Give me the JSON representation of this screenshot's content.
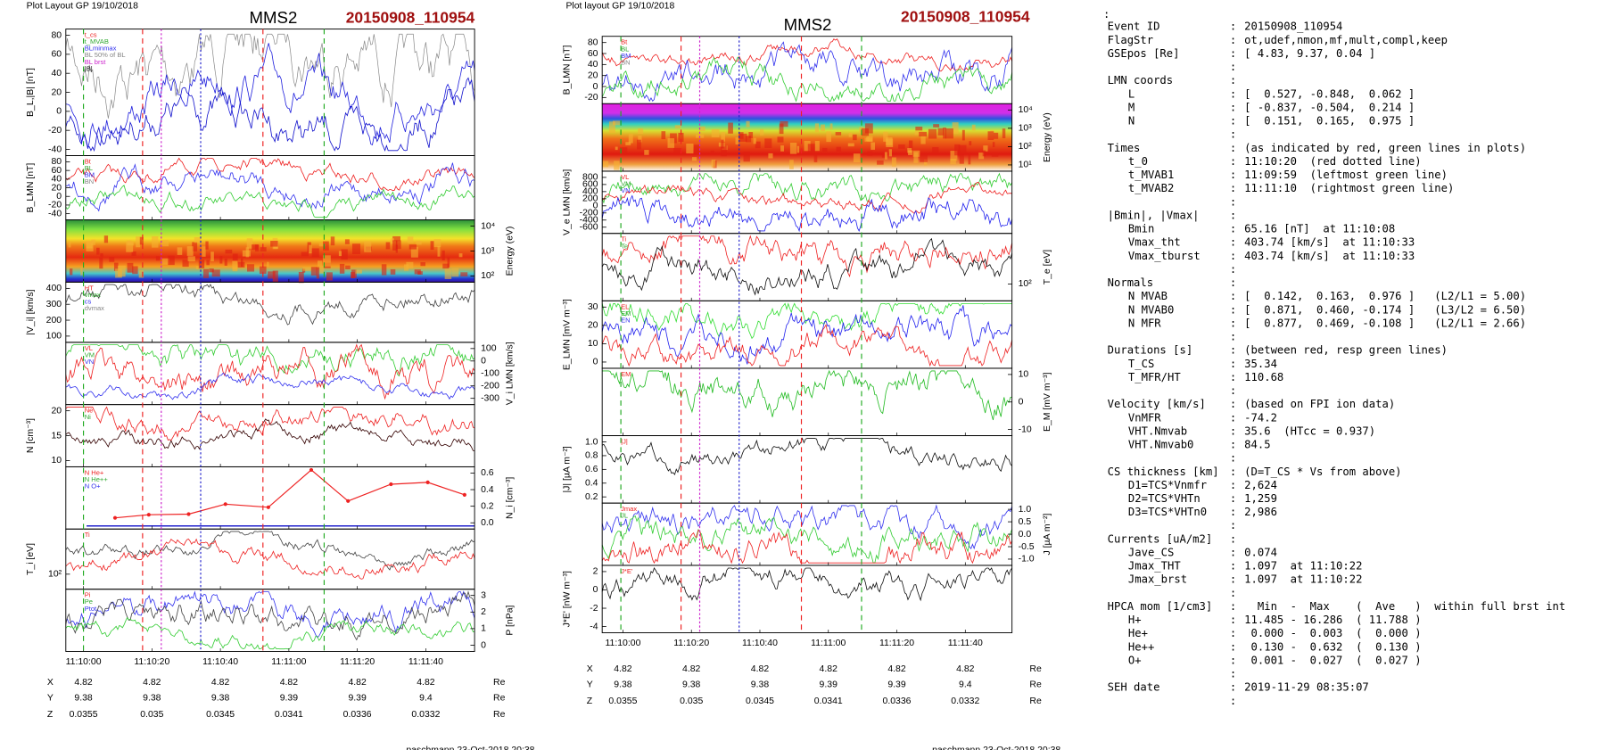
{
  "plots": [
    {
      "header": "Plot Layout GP 19/10/2018",
      "title": "MMS2",
      "event": "20150908_110954",
      "footer": "paschmann 23-Oct-2018 20:38",
      "xticks": [
        "11:10:00",
        "11:10:20",
        "11:10:40",
        "11:11:00",
        "11:11:20",
        "11:11:40"
      ],
      "positions": [
        [
          "X",
          "4.82",
          "4.82",
          "4.82",
          "4.82",
          "4.82",
          "4.82",
          "Re"
        ],
        [
          "Y",
          "9.38",
          "9.38",
          "9.38",
          "9.39",
          "9.39",
          "9.4",
          "Re"
        ],
        [
          "Z",
          "0.0355",
          "0.035",
          "0.0345",
          "0.0341",
          "0.0336",
          "0.0332",
          "Re"
        ]
      ],
      "panels": [
        {
          "ylabel": "B_L,|B| [nT]",
          "side": "left",
          "ticks": [
            "80",
            "60",
            "40",
            "20",
            "0",
            "-20",
            "-40"
          ],
          "legend": [
            "t_cs",
            "t_MVAB",
            "BLminmax",
            "BL 50% of BL",
            "BL brst",
            "|B|"
          ],
          "traces": [
            "#888",
            "#22d",
            "#11c"
          ]
        },
        {
          "ylabel": "B_LMN [nT]",
          "side": "left",
          "ticks": [
            "80",
            "60",
            "40",
            "20",
            "0",
            "-20",
            "-40"
          ],
          "legend": [
            "Bt",
            "BL",
            "BM",
            "BN"
          ],
          "traces": [
            "#e22",
            "#33e",
            "#3c3"
          ]
        },
        {
          "ylabel": "Energy (eV)",
          "side": "right",
          "ticks": [
            "10⁴",
            "10³",
            "10²"
          ],
          "legend": [],
          "spectrogram": true
        },
        {
          "ylabel": "|V_i| [km/s]",
          "side": "left",
          "ticks": [
            "400",
            "300",
            "200",
            "100"
          ],
          "legend": [
            "HT",
            "vmax",
            "cs",
            "dvmax"
          ],
          "traces": [
            "#444"
          ]
        },
        {
          "ylabel": "V_i LMN [km/s]",
          "side": "right",
          "ticks": [
            "100",
            "0",
            "-100",
            "-200",
            "-300"
          ],
          "legend": [
            "VL",
            "VM",
            "VN"
          ],
          "traces": [
            "#3c3",
            "#e22",
            "#33e"
          ]
        },
        {
          "ylabel": "N [cm⁻³]",
          "side": "left",
          "ticks": [
            "20",
            "15",
            "10"
          ],
          "legend": [
            "Ne",
            "Ni"
          ],
          "traces": [
            "#e22",
            "#300"
          ]
        },
        {
          "ylabel": "N_i [cm⁻³]",
          "side": "right",
          "ticks": [
            "0.6",
            "0.4",
            "0.2",
            "0.0"
          ],
          "legend": [
            "N He+",
            "N He++",
            "N O+"
          ],
          "traces": []
        },
        {
          "ylabel": "T_i [eV]",
          "side": "left",
          "ticks": [
            "10²"
          ],
          "legend": [
            "Ti"
          ],
          "traces": [
            "#444",
            "#e22"
          ]
        },
        {
          "ylabel": "P [nPa]",
          "side": "right",
          "ticks": [
            "3",
            "2",
            "1",
            "0"
          ],
          "legend": [
            "Pi",
            "Pe",
            "Ptot"
          ],
          "traces": [
            "#33e",
            "#444",
            "#3c3"
          ]
        }
      ]
    },
    {
      "header": "Plot layout GP 19/10/2018",
      "title": "MMS2",
      "event": "20150908_110954",
      "footer": "paschmann 23-Oct-2018 20:38",
      "xticks": [
        "11:10:00",
        "11:10:20",
        "11:10:40",
        "11:11:00",
        "11:11:20",
        "11:11:40"
      ],
      "positions": [
        [
          "X",
          "4.82",
          "4.82",
          "4.82",
          "4.82",
          "4.82",
          "4.82",
          "Re"
        ],
        [
          "Y",
          "9.38",
          "9.38",
          "9.38",
          "9.39",
          "9.39",
          "9.4",
          "Re"
        ],
        [
          "Z",
          "0.0355",
          "0.035",
          "0.0345",
          "0.0341",
          "0.0336",
          "0.0332",
          "Re"
        ]
      ],
      "panels": [
        {
          "ylabel": "B_LMN [nT]",
          "side": "left",
          "ticks": [
            "80",
            "60",
            "40",
            "20",
            "0",
            "-20"
          ],
          "legend": [
            "Bt",
            "BL",
            "BM",
            "BN"
          ],
          "traces": [
            "#e22",
            "#33e",
            "#3c3"
          ]
        },
        {
          "ylabel": "Energy (eV)",
          "side": "right",
          "ticks": [
            "10⁴",
            "10³",
            "10²",
            "10¹"
          ],
          "legend": [],
          "spectrogram": true,
          "magenta": true
        },
        {
          "ylabel": "V_e LMN [km/s]",
          "side": "left",
          "ticks": [
            "800",
            "600",
            "400",
            "200",
            "0",
            "-200",
            "-400",
            "-600"
          ],
          "legend": [
            "VL",
            "VM",
            "VN"
          ],
          "traces": [
            "#3c3",
            "#e22",
            "#22e"
          ]
        },
        {
          "ylabel": "T_e [eV]",
          "side": "right",
          "ticks": [
            "10²"
          ],
          "legend": [
            "Ti",
            "Te"
          ],
          "traces": [
            "#e22",
            "#111"
          ]
        },
        {
          "ylabel": "E_LMN [mV m⁻³]",
          "side": "left",
          "ticks": [
            "30",
            "20",
            "10",
            "0"
          ],
          "legend": [
            "EL",
            "EM",
            "EN"
          ],
          "traces": [
            "#3d3",
            "#22e",
            "#e22"
          ]
        },
        {
          "ylabel": "E_M [mV m⁻³]",
          "side": "right",
          "ticks": [
            "10",
            "0",
            "-10"
          ],
          "legend": [
            "EM"
          ],
          "traces": [
            "#2b2"
          ]
        },
        {
          "ylabel": "|J| [µA m⁻²]",
          "side": "left",
          "ticks": [
            "1.0",
            "0.8",
            "0.6",
            "0.4",
            "0.2"
          ],
          "legend": [
            "|J|"
          ],
          "traces": [
            "#111"
          ]
        },
        {
          "ylabel": "J [µA m⁻²]",
          "side": "right",
          "ticks": [
            "1.0",
            "0.5",
            "0.0",
            "-0.5",
            "-1.0"
          ],
          "legend": [
            "Jmax",
            "JL"
          ],
          "traces": [
            "#33e",
            "#3c3",
            "#e22"
          ]
        },
        {
          "ylabel": "J*E' [nW m⁻³]",
          "side": "left",
          "ticks": [
            "2",
            "0",
            "-2",
            "-4"
          ],
          "legend": [
            "J*E'"
          ],
          "traces": [
            "#111"
          ]
        }
      ]
    }
  ],
  "summary": [
    {
      "heading": null,
      "value": null,
      "items": [
        [
          "Event ID",
          "20150908_110954"
        ],
        [
          "FlagStr",
          "ot,udef,nmon,mf,mult,compl,keep"
        ],
        [
          "GSEpos [Re]",
          "[ 4.83, 9.37, 0.04 ]"
        ]
      ]
    },
    {
      "heading": "LMN coords",
      "value": null,
      "items": [
        [
          "L",
          "[  0.527, -0.848,  0.062 ]"
        ],
        [
          "M",
          "[ -0.837, -0.504,  0.214 ]"
        ],
        [
          "N",
          "[  0.151,  0.165,  0.975 ]"
        ]
      ]
    },
    {
      "heading": "Times",
      "value": "(as indicated by red, green lines in plots)",
      "items": [
        [
          "t_0",
          "11:10:20  (red dotted line)"
        ],
        [
          "t_MVAB1",
          "11:09:59  (leftmost green line)"
        ],
        [
          "t_MVAB2",
          "11:11:10  (rightmost green line)"
        ]
      ]
    },
    {
      "heading": "|Bmin|, |Vmax|",
      "value": null,
      "items": [
        [
          "Bmin",
          "65.16 [nT]  at 11:10:08"
        ],
        [
          "Vmax_tht",
          "403.74 [km/s]  at 11:10:33"
        ],
        [
          "Vmax_tburst",
          "403.74 [km/s]  at 11:10:33"
        ]
      ]
    },
    {
      "heading": "Normals",
      "value": null,
      "items": [
        [
          "N MVAB",
          "[  0.142,  0.163,  0.976 ]   (L2/L1 = 5.00)"
        ],
        [
          "N MVAB0",
          "[  0.871,  0.460, -0.174 ]   (L3/L2 = 6.50)"
        ],
        [
          "N MFR",
          "[  0.877,  0.469, -0.108 ]   (L2/L1 = 2.66)"
        ]
      ]
    },
    {
      "heading": "Durations [s]",
      "value": "(between red, resp green lines)",
      "items": [
        [
          "T_CS",
          "35.34"
        ],
        [
          "T_MFR/HT",
          "110.68"
        ]
      ]
    },
    {
      "heading": "Velocity [km/s]",
      "value": "(based on FPI ion data)",
      "items": [
        [
          "VnMFR",
          "-74.2"
        ],
        [
          "VHT.Nmvab",
          "35.6  (HTcc = 0.937)"
        ],
        [
          "VHT.Nmvab0",
          "84.5"
        ]
      ]
    },
    {
      "heading": "CS thickness [km]",
      "value": "(D=T_CS * Vs from above)",
      "items": [
        [
          "D1=TCS*Vnmfr",
          "2,624"
        ],
        [
          "D2=TCS*VHTn",
          "1,259"
        ],
        [
          "D3=TCS*VHTn0",
          "2,986"
        ]
      ]
    },
    {
      "heading": "Currents [uA/m2]",
      "value": null,
      "items": [
        [
          "Jave_CS",
          "0.074"
        ],
        [
          "Jmax_THT",
          "1.097  at 11:10:22"
        ],
        [
          "Jmax_brst",
          "1.097  at 11:10:22"
        ]
      ]
    },
    {
      "heading": "HPCA mom [1/cm3]",
      "value": "  Min  -  Max    (  Ave   )  within full brst int",
      "items": [
        [
          "H+",
          "11.485 - 16.286  ( 11.788 )"
        ],
        [
          "He+",
          " 0.000 -  0.003  (  0.000 )"
        ],
        [
          "He++",
          " 0.130 -  0.632  (  0.130 )"
        ],
        [
          "O+",
          " 0.001 -  0.027  (  0.027 )"
        ]
      ]
    },
    {
      "heading": "SEH date",
      "value": "2019-11-29 08:35:07",
      "items": []
    }
  ]
}
